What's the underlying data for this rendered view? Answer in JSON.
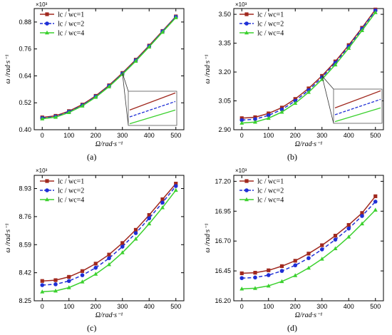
{
  "chart_data": [
    {
      "panel": "(a)",
      "type": "line",
      "x": [
        0,
        50,
        100,
        150,
        200,
        250,
        300,
        350,
        400,
        450,
        500
      ],
      "xlabel": "Ω/rad·s⁻¹",
      "ylabel": "ω /rad·s⁻¹",
      "scale_note": "×10³",
      "xlim": [
        -30,
        530
      ],
      "ylim": [
        0.4,
        0.94
      ],
      "yticks": [
        0.4,
        0.52,
        0.64,
        0.76,
        0.88
      ],
      "ytick_labels": [
        "0.40",
        "0.52",
        "0.64",
        "0.76",
        "0.88"
      ],
      "xticks": [
        0,
        100,
        200,
        300,
        400,
        500
      ],
      "legend_position": "top-left",
      "inset": true,
      "series": [
        {
          "name": "lc / wc=1",
          "color": "#a0281e",
          "marker": "square",
          "dash": "solid",
          "values": [
            0.455,
            0.462,
            0.483,
            0.512,
            0.551,
            0.598,
            0.653,
            0.712,
            0.775,
            0.84,
            0.905
          ]
        },
        {
          "name": "lc / wc=2",
          "color": "#1f2fd6",
          "marker": "circle",
          "dash": "dashed",
          "values": [
            0.452,
            0.459,
            0.48,
            0.509,
            0.548,
            0.595,
            0.65,
            0.709,
            0.772,
            0.838,
            0.903
          ]
        },
        {
          "name": "lc / wc=4",
          "color": "#3bd12e",
          "marker": "triangle",
          "dash": "solid",
          "values": [
            0.449,
            0.456,
            0.477,
            0.506,
            0.545,
            0.592,
            0.647,
            0.706,
            0.769,
            0.835,
            0.9
          ]
        }
      ]
    },
    {
      "panel": "(b)",
      "type": "line",
      "x": [
        0,
        50,
        100,
        150,
        200,
        250,
        300,
        350,
        400,
        450,
        500
      ],
      "xlabel": "Ω/rad·s⁻¹",
      "ylabel": "ω /rad·s⁻¹",
      "scale_note": "×10³",
      "xlim": [
        -30,
        530
      ],
      "ylim": [
        2.9,
        3.53
      ],
      "yticks": [
        2.9,
        3.05,
        3.2,
        3.35,
        3.5
      ],
      "ytick_labels": [
        "2.90",
        "3.05",
        "3.20",
        "3.35",
        "3.50"
      ],
      "xticks": [
        0,
        100,
        200,
        300,
        400,
        500
      ],
      "legend_position": "top-left",
      "inset": true,
      "series": [
        {
          "name": "lc / wc=1",
          "color": "#a0281e",
          "marker": "square",
          "dash": "solid",
          "values": [
            2.96,
            2.965,
            2.985,
            3.015,
            3.06,
            3.115,
            3.18,
            3.255,
            3.34,
            3.43,
            3.525
          ]
        },
        {
          "name": "lc / wc=2",
          "color": "#1f2fd6",
          "marker": "circle",
          "dash": "dashed",
          "values": [
            2.95,
            2.955,
            2.975,
            3.005,
            3.05,
            3.105,
            3.172,
            3.248,
            3.333,
            3.425,
            3.52
          ]
        },
        {
          "name": "lc / wc=4",
          "color": "#3bd12e",
          "marker": "triangle",
          "dash": "solid",
          "values": [
            2.935,
            2.94,
            2.96,
            2.992,
            3.038,
            3.095,
            3.162,
            3.238,
            3.324,
            3.416,
            3.51
          ]
        }
      ]
    },
    {
      "panel": "(c)",
      "type": "line",
      "x": [
        0,
        50,
        100,
        150,
        200,
        250,
        300,
        350,
        400,
        450,
        500
      ],
      "xlabel": "Ω/rad·s⁻¹",
      "ylabel": "ω /rad·s⁻¹",
      "scale_note": "×10³",
      "xlim": [
        -30,
        530
      ],
      "ylim": [
        8.25,
        9.01
      ],
      "yticks": [
        8.25,
        8.42,
        8.59,
        8.76,
        8.93
      ],
      "ytick_labels": [
        "8.25",
        "8.42",
        "8.59",
        "8.76",
        "8.93"
      ],
      "xticks": [
        0,
        100,
        200,
        300,
        400,
        500
      ],
      "legend_position": "top-left",
      "inset": false,
      "series": [
        {
          "name": "lc / wc=1",
          "color": "#a0281e",
          "marker": "square",
          "dash": "solid",
          "values": [
            8.37,
            8.375,
            8.395,
            8.43,
            8.475,
            8.53,
            8.6,
            8.68,
            8.77,
            8.865,
            8.96
          ]
        },
        {
          "name": "lc / wc=2",
          "color": "#1f2fd6",
          "marker": "circle",
          "dash": "dashed",
          "values": [
            8.345,
            8.35,
            8.37,
            8.405,
            8.45,
            8.508,
            8.578,
            8.66,
            8.75,
            8.845,
            8.945
          ]
        },
        {
          "name": "lc / wc=4",
          "color": "#3bd12e",
          "marker": "triangle",
          "dash": "solid",
          "values": [
            8.305,
            8.31,
            8.33,
            8.365,
            8.412,
            8.47,
            8.542,
            8.625,
            8.717,
            8.815,
            8.92
          ]
        }
      ]
    },
    {
      "panel": "(d)",
      "type": "line",
      "x": [
        0,
        50,
        100,
        150,
        200,
        250,
        300,
        350,
        400,
        450,
        500
      ],
      "xlabel": "Ω/rad·s⁻¹",
      "ylabel": "ω /rad·s⁻¹",
      "scale_note": "×10³",
      "xlim": [
        -30,
        530
      ],
      "ylim": [
        16.2,
        17.25
      ],
      "yticks": [
        16.2,
        16.45,
        16.7,
        16.95,
        17.2
      ],
      "ytick_labels": [
        "16.20",
        "16.45",
        "16.70",
        "16.95",
        "17.20"
      ],
      "xticks": [
        0,
        100,
        200,
        300,
        400,
        500
      ],
      "legend_position": "top-left",
      "inset": false,
      "series": [
        {
          "name": "lc / wc=1",
          "color": "#a0281e",
          "marker": "square",
          "dash": "solid",
          "values": [
            16.43,
            16.435,
            16.455,
            16.49,
            16.535,
            16.595,
            16.665,
            16.745,
            16.835,
            16.935,
            17.075
          ]
        },
        {
          "name": "lc / wc=2",
          "color": "#1f2fd6",
          "marker": "circle",
          "dash": "dashed",
          "values": [
            16.39,
            16.395,
            16.415,
            16.45,
            16.497,
            16.557,
            16.63,
            16.712,
            16.805,
            16.91,
            17.03
          ]
        },
        {
          "name": "lc / wc=4",
          "color": "#3bd12e",
          "marker": "triangle",
          "dash": "solid",
          "values": [
            16.3,
            16.305,
            16.325,
            16.362,
            16.412,
            16.475,
            16.55,
            16.637,
            16.735,
            16.845,
            16.96
          ]
        }
      ]
    }
  ]
}
